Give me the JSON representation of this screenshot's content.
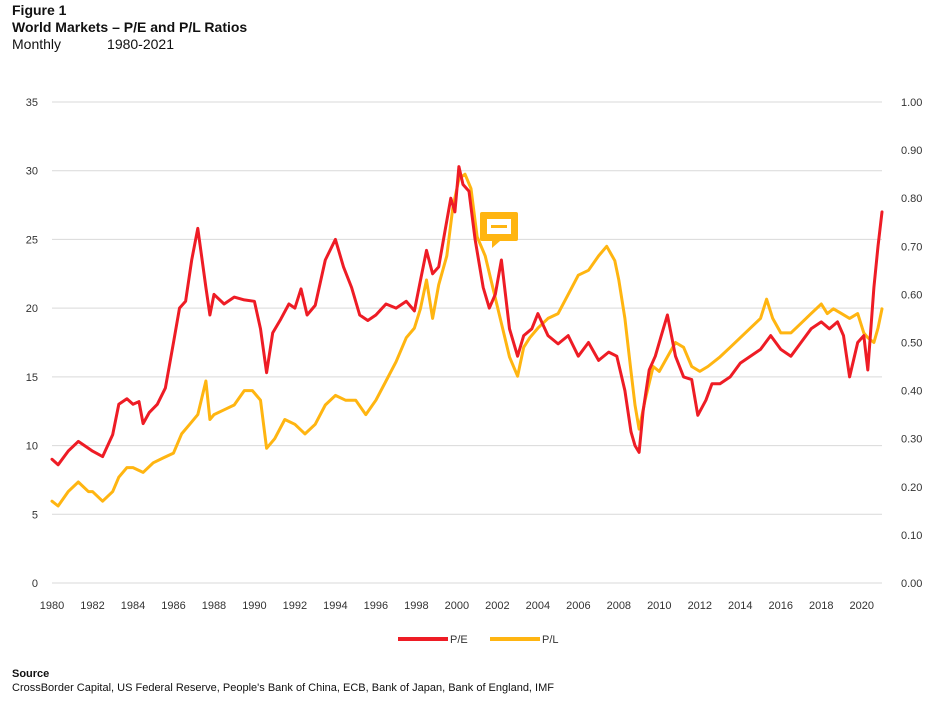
{
  "header": {
    "figure_label": "Figure 1",
    "title": "World Markets – P/E and P/L Ratios",
    "frequency": "Monthly",
    "period": "1980-2021"
  },
  "source": {
    "label": "Source",
    "text": "CrossBorder Capital, US Federal Reserve, People's Bank of China, ECB, Bank of Japan, Bank of England, IMF"
  },
  "colors": {
    "pe": "#ee1c25",
    "pl": "#ffb511",
    "grid": "#d9d9d9",
    "annotation": "#ffb511"
  },
  "chart_data": {
    "type": "line",
    "x_ticks": [
      "1980",
      "1982",
      "1984",
      "1986",
      "1988",
      "1990",
      "1992",
      "1994",
      "1996",
      "1998",
      "2000",
      "2002",
      "2004",
      "2006",
      "2008",
      "2010",
      "2012",
      "2014",
      "2016",
      "2018",
      "2020"
    ],
    "ylim_left": [
      0,
      35
    ],
    "ylim_right": [
      0,
      1.0
    ],
    "y_ticks_left": [
      "0",
      "5",
      "10",
      "15",
      "20",
      "25",
      "30",
      "35"
    ],
    "y_ticks_right": [
      "0.00",
      "0.10",
      "0.20",
      "0.30",
      "0.40",
      "0.50",
      "0.60",
      "0.70",
      "0.80",
      "0.90",
      "1.00"
    ],
    "grid": "horizontal",
    "legend_position": "bottom",
    "series": [
      {
        "name": "P/E",
        "axis": "left",
        "x": [
          1980.0,
          1980.3,
          1980.8,
          1981.3,
          1981.8,
          1982.0,
          1982.5,
          1983.0,
          1983.3,
          1983.7,
          1984.0,
          1984.3,
          1984.5,
          1984.8,
          1985.2,
          1985.6,
          1986.0,
          1986.3,
          1986.6,
          1986.9,
          1987.2,
          1987.6,
          1987.8,
          1988.0,
          1988.5,
          1989.0,
          1989.5,
          1990.0,
          1990.3,
          1990.6,
          1990.9,
          1991.3,
          1991.7,
          1992.0,
          1992.3,
          1992.6,
          1993.0,
          1993.5,
          1994.0,
          1994.4,
          1994.8,
          1995.2,
          1995.6,
          1996.0,
          1996.5,
          1997.0,
          1997.5,
          1997.9,
          1998.2,
          1998.5,
          1998.8,
          1999.1,
          1999.4,
          1999.7,
          1999.9,
          2000.1,
          2000.3,
          2000.6,
          2000.9,
          2001.3,
          2001.6,
          2001.9,
          2002.2,
          2002.6,
          2003.0,
          2003.3,
          2003.7,
          2004.0,
          2004.5,
          2005.0,
          2005.5,
          2006.0,
          2006.5,
          2007.0,
          2007.5,
          2007.9,
          2008.3,
          2008.6,
          2008.8,
          2009.0,
          2009.2,
          2009.5,
          2009.8,
          2010.1,
          2010.4,
          2010.8,
          2011.2,
          2011.6,
          2011.9,
          2012.3,
          2012.6,
          2013.0,
          2013.5,
          2014.0,
          2014.5,
          2015.0,
          2015.5,
          2016.0,
          2016.5,
          2017.0,
          2017.5,
          2018.0,
          2018.4,
          2018.8,
          2019.1,
          2019.4,
          2019.8,
          2020.1,
          2020.3,
          2020.6,
          2020.8,
          2021.0
        ],
        "values": [
          9.0,
          8.6,
          9.6,
          10.3,
          9.8,
          9.6,
          9.2,
          10.8,
          13.0,
          13.4,
          13.0,
          13.2,
          11.6,
          12.4,
          13.0,
          14.2,
          17.5,
          20.0,
          20.5,
          23.5,
          25.8,
          21.5,
          19.5,
          21.0,
          20.3,
          20.8,
          20.6,
          20.5,
          18.5,
          15.3,
          18.2,
          19.2,
          20.3,
          20.0,
          21.4,
          19.5,
          20.2,
          23.5,
          25.0,
          23.0,
          21.5,
          19.5,
          19.1,
          19.5,
          20.3,
          20.0,
          20.5,
          19.8,
          22.0,
          24.2,
          22.5,
          23.0,
          25.5,
          28.0,
          27.0,
          30.3,
          29.0,
          28.5,
          25.0,
          21.5,
          20.0,
          21.0,
          23.5,
          18.5,
          16.5,
          18.0,
          18.5,
          19.6,
          18.0,
          17.4,
          18.0,
          16.5,
          17.5,
          16.2,
          16.8,
          16.5,
          14.0,
          11.0,
          10.0,
          9.5,
          12.5,
          15.5,
          16.5,
          18.0,
          19.5,
          16.5,
          15.0,
          14.8,
          12.2,
          13.3,
          14.5,
          14.5,
          15.0,
          16.0,
          16.5,
          17.0,
          18.0,
          17.0,
          16.5,
          17.5,
          18.5,
          19.0,
          18.5,
          19.0,
          18.0,
          15.0,
          17.5,
          18.0,
          15.5,
          21.5,
          24.5,
          27.0
        ]
      },
      {
        "name": "P/L",
        "axis": "right",
        "x": [
          1980.0,
          1980.3,
          1980.8,
          1981.3,
          1981.8,
          1982.0,
          1982.5,
          1983.0,
          1983.3,
          1983.7,
          1984.0,
          1984.5,
          1985.0,
          1985.5,
          1986.0,
          1986.4,
          1986.8,
          1987.2,
          1987.6,
          1987.8,
          1988.0,
          1988.5,
          1989.0,
          1989.5,
          1989.9,
          1990.3,
          1990.6,
          1991.0,
          1991.5,
          1992.0,
          1992.5,
          1993.0,
          1993.5,
          1994.0,
          1994.5,
          1995.0,
          1995.5,
          1996.0,
          1996.5,
          1997.0,
          1997.5,
          1997.9,
          1998.2,
          1998.5,
          1998.8,
          1999.1,
          1999.5,
          1999.8,
          2000.1,
          2000.4,
          2000.7,
          2001.0,
          2001.4,
          2001.8,
          2002.2,
          2002.6,
          2003.0,
          2003.3,
          2003.6,
          2004.0,
          2004.5,
          2005.0,
          2005.5,
          2006.0,
          2006.5,
          2007.0,
          2007.4,
          2007.8,
          2008.0,
          2008.3,
          2008.6,
          2008.8,
          2009.0,
          2009.3,
          2009.7,
          2010.0,
          2010.4,
          2010.8,
          2011.2,
          2011.6,
          2012.0,
          2012.4,
          2013.0,
          2013.5,
          2014.0,
          2014.5,
          2015.0,
          2015.3,
          2015.6,
          2016.0,
          2016.5,
          2017.0,
          2017.5,
          2018.0,
          2018.3,
          2018.6,
          2019.0,
          2019.4,
          2019.8,
          2020.1,
          2020.3,
          2020.6,
          2020.8,
          2021.0
        ],
        "values": [
          0.17,
          0.16,
          0.19,
          0.21,
          0.19,
          0.19,
          0.17,
          0.19,
          0.22,
          0.24,
          0.24,
          0.23,
          0.25,
          0.26,
          0.27,
          0.31,
          0.33,
          0.35,
          0.42,
          0.34,
          0.35,
          0.36,
          0.37,
          0.4,
          0.4,
          0.38,
          0.28,
          0.3,
          0.34,
          0.33,
          0.31,
          0.33,
          0.37,
          0.39,
          0.38,
          0.38,
          0.35,
          0.38,
          0.42,
          0.46,
          0.51,
          0.53,
          0.57,
          0.63,
          0.55,
          0.62,
          0.68,
          0.78,
          0.84,
          0.85,
          0.82,
          0.72,
          0.68,
          0.61,
          0.54,
          0.47,
          0.43,
          0.49,
          0.51,
          0.53,
          0.55,
          0.56,
          0.6,
          0.64,
          0.65,
          0.68,
          0.7,
          0.67,
          0.63,
          0.55,
          0.44,
          0.37,
          0.32,
          0.38,
          0.45,
          0.44,
          0.47,
          0.5,
          0.49,
          0.45,
          0.44,
          0.45,
          0.47,
          0.49,
          0.51,
          0.53,
          0.55,
          0.59,
          0.55,
          0.52,
          0.52,
          0.54,
          0.56,
          0.58,
          0.56,
          0.57,
          0.56,
          0.55,
          0.56,
          0.52,
          0.51,
          0.5,
          0.53,
          0.57
        ]
      }
    ]
  }
}
